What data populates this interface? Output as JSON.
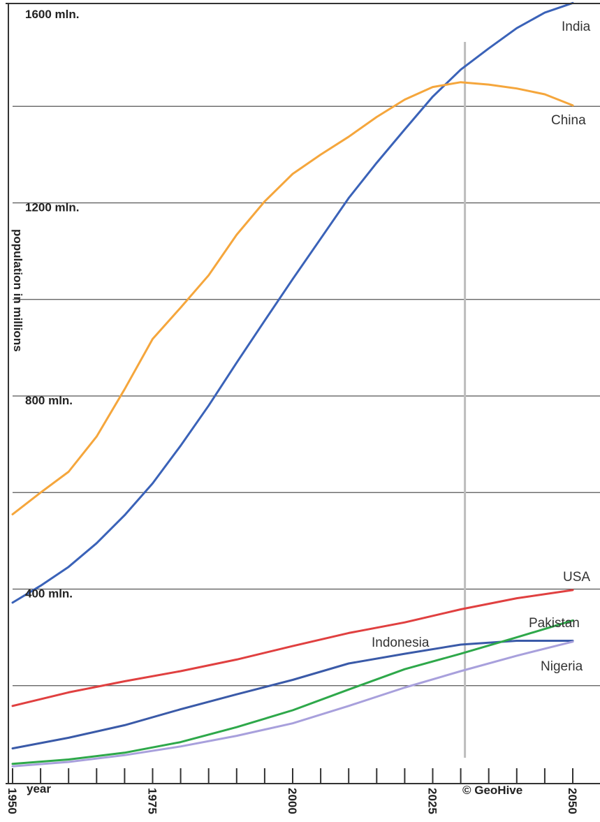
{
  "chart_data": {
    "type": "line",
    "ylabel": "population in millions",
    "xlabel": "year",
    "xlim": [
      1950,
      2055
    ],
    "ylim": [
      0,
      1640
    ],
    "y_labels": [
      {
        "value": 1600,
        "text": "1600 mln."
      },
      {
        "value": 1200,
        "text": "1200 mln."
      },
      {
        "value": 800,
        "text": "800 mln."
      },
      {
        "value": 400,
        "text": "400 mln."
      }
    ],
    "gridlines": [
      200,
      400,
      600,
      800,
      1000,
      1200,
      1400
    ],
    "x_tick_labels": [
      {
        "value": 1950,
        "text": "1950"
      },
      {
        "value": 1975,
        "text": "1975"
      },
      {
        "value": 2000,
        "text": "2000"
      },
      {
        "value": 2025,
        "text": "2025"
      },
      {
        "value": 2050,
        "text": "2050"
      }
    ],
    "x_minor_ticks": [
      1955,
      1960,
      1965,
      1970,
      1980,
      1985,
      1990,
      1995,
      2005,
      2010,
      2015,
      2020,
      2030,
      2035,
      2040,
      2045
    ],
    "marker_year": 2030,
    "credit": "© GeoHive",
    "series": [
      {
        "name": "India",
        "color": "#3a62b8",
        "x": [
          1950,
          1955,
          1960,
          1965,
          1970,
          1975,
          1980,
          1985,
          1990,
          1995,
          2000,
          2005,
          2010,
          2015,
          2020,
          2025,
          2030,
          2035,
          2040,
          2045,
          2050
        ],
        "y": [
          372,
          407,
          446,
          495,
          553,
          619,
          697,
          780,
          869,
          956,
          1042,
          1126,
          1210,
          1283,
          1352,
          1420,
          1476,
          1520,
          1562,
          1594,
          1614
        ]
      },
      {
        "name": "China",
        "color": "#f5a63c",
        "x": [
          1950,
          1955,
          1960,
          1965,
          1970,
          1975,
          1980,
          1985,
          1990,
          1995,
          2000,
          2005,
          2010,
          2015,
          2020,
          2025,
          2030,
          2035,
          2040,
          2045,
          2050
        ],
        "y": [
          555,
          600,
          643,
          716,
          814,
          918,
          983,
          1050,
          1134,
          1203,
          1260,
          1300,
          1337,
          1378,
          1414,
          1440,
          1450,
          1445,
          1437,
          1425,
          1402
        ]
      },
      {
        "name": "USA",
        "color": "#e04040",
        "x": [
          1950,
          1960,
          1970,
          1980,
          1990,
          2000,
          2010,
          2020,
          2030,
          2040,
          2050
        ],
        "y": [
          158,
          186,
          209,
          230,
          254,
          282,
          309,
          331,
          358,
          381,
          398
        ]
      },
      {
        "name": "Indonesia",
        "color": "#3a5aa8",
        "x": [
          1950,
          1960,
          1970,
          1980,
          1990,
          2000,
          2010,
          2020,
          2030,
          2040,
          2050
        ],
        "y": [
          70,
          92,
          118,
          151,
          182,
          212,
          246,
          266,
          285,
          293,
          293
        ]
      },
      {
        "name": "Pakistan",
        "color": "#2ea84a",
        "x": [
          1950,
          1960,
          1970,
          1980,
          1990,
          2000,
          2010,
          2020,
          2030,
          2040,
          2050
        ],
        "y": [
          38,
          47,
          61,
          83,
          114,
          149,
          192,
          234,
          266,
          300,
          335
        ]
      },
      {
        "name": "Nigeria",
        "color": "#a8a0dc",
        "x": [
          1950,
          1960,
          1970,
          1980,
          1990,
          2000,
          2010,
          2020,
          2030,
          2040,
          2050
        ],
        "y": [
          33,
          42,
          56,
          74,
          96,
          122,
          158,
          196,
          230,
          262,
          291
        ]
      }
    ]
  }
}
